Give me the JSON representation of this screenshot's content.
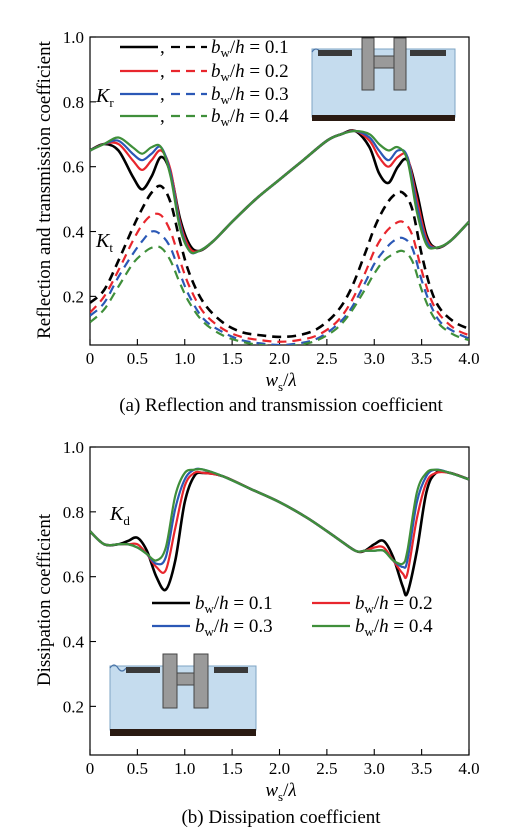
{
  "figure": {
    "captions": [
      "(a) Reflection and transmission coefficient",
      "(b) Dissipation coefficient"
    ]
  },
  "colors": {
    "bw_0.1": "#000000",
    "bw_0.2": "#e8262d",
    "bw_0.3": "#2b58b6",
    "bw_0.4": "#3f8f3a",
    "water": "#c5dcee",
    "structure": "#9a9a9a",
    "seabed": "#2a1a12"
  },
  "chart_data": [
    {
      "type": "line",
      "caption": "(a) Reflection and transmission coefficient",
      "xlabel": "w_s/λ",
      "ylabel": "Reflection and transmission coefficient",
      "xlim": [
        0,
        4
      ],
      "ylim": [
        0.05,
        1.0
      ],
      "xticks": [
        "0",
        "0.5",
        "1.0",
        "1.5",
        "2.0",
        "2.5",
        "3.0",
        "3.5",
        "4.0"
      ],
      "yticks": [
        "0.2",
        "0.4",
        "0.6",
        "0.8",
        "1.0"
      ],
      "annotations": [
        "K_r",
        "K_t"
      ],
      "legend_location": "top-left",
      "legend": [
        "b_w/h = 0.1",
        "b_w/h = 0.2",
        "b_w/h = 0.3",
        "b_w/h = 0.4"
      ],
      "series": [
        {
          "name": "K_r, b_w/h = 0.1",
          "style": "solid",
          "color": "#000000",
          "x": [
            0,
            0.15,
            0.3,
            0.45,
            0.55,
            0.65,
            0.75,
            0.85,
            0.95,
            1.05,
            1.15,
            1.3,
            1.5,
            1.75,
            2.0,
            2.25,
            2.5,
            2.65,
            2.8,
            2.95,
            3.05,
            3.15,
            3.25,
            3.35,
            3.45,
            3.55,
            3.65,
            3.8,
            4.0
          ],
          "y": [
            0.65,
            0.67,
            0.65,
            0.57,
            0.53,
            0.57,
            0.63,
            0.58,
            0.44,
            0.36,
            0.34,
            0.37,
            0.43,
            0.5,
            0.56,
            0.62,
            0.68,
            0.7,
            0.71,
            0.66,
            0.58,
            0.55,
            0.6,
            0.62,
            0.52,
            0.39,
            0.35,
            0.37,
            0.43
          ]
        },
        {
          "name": "K_r, b_w/h = 0.2",
          "style": "solid",
          "color": "#e8262d",
          "x": [
            0,
            0.15,
            0.3,
            0.45,
            0.55,
            0.65,
            0.75,
            0.85,
            0.95,
            1.05,
            1.15,
            1.3,
            1.5,
            1.75,
            2.0,
            2.25,
            2.5,
            2.65,
            2.8,
            2.95,
            3.05,
            3.15,
            3.25,
            3.35,
            3.45,
            3.55,
            3.65,
            3.8,
            4.0
          ],
          "y": [
            0.65,
            0.67,
            0.67,
            0.62,
            0.59,
            0.62,
            0.65,
            0.59,
            0.43,
            0.35,
            0.34,
            0.37,
            0.43,
            0.5,
            0.56,
            0.62,
            0.68,
            0.7,
            0.71,
            0.68,
            0.63,
            0.6,
            0.63,
            0.63,
            0.5,
            0.38,
            0.35,
            0.37,
            0.43
          ]
        },
        {
          "name": "K_r, b_w/h = 0.3",
          "style": "solid",
          "color": "#2b58b6",
          "x": [
            0,
            0.15,
            0.3,
            0.45,
            0.55,
            0.65,
            0.75,
            0.85,
            0.95,
            1.05,
            1.15,
            1.3,
            1.5,
            1.75,
            2.0,
            2.25,
            2.5,
            2.65,
            2.8,
            2.95,
            3.05,
            3.15,
            3.25,
            3.35,
            3.45,
            3.55,
            3.65,
            3.8,
            4.0
          ],
          "y": [
            0.65,
            0.67,
            0.68,
            0.64,
            0.62,
            0.64,
            0.66,
            0.58,
            0.42,
            0.34,
            0.34,
            0.37,
            0.43,
            0.5,
            0.56,
            0.62,
            0.68,
            0.7,
            0.71,
            0.69,
            0.65,
            0.62,
            0.65,
            0.63,
            0.48,
            0.37,
            0.35,
            0.37,
            0.43
          ]
        },
        {
          "name": "K_r, b_w/h = 0.4",
          "style": "solid",
          "color": "#3f8f3a",
          "x": [
            0,
            0.15,
            0.3,
            0.45,
            0.55,
            0.65,
            0.75,
            0.85,
            0.95,
            1.05,
            1.15,
            1.3,
            1.5,
            1.75,
            2.0,
            2.25,
            2.5,
            2.65,
            2.8,
            2.95,
            3.05,
            3.15,
            3.25,
            3.35,
            3.45,
            3.55,
            3.65,
            3.8,
            4.0
          ],
          "y": [
            0.65,
            0.67,
            0.69,
            0.66,
            0.64,
            0.66,
            0.66,
            0.57,
            0.41,
            0.34,
            0.34,
            0.37,
            0.43,
            0.5,
            0.56,
            0.62,
            0.68,
            0.7,
            0.71,
            0.7,
            0.67,
            0.65,
            0.66,
            0.62,
            0.46,
            0.36,
            0.35,
            0.37,
            0.43
          ]
        },
        {
          "name": "K_t, b_w/h = 0.1",
          "style": "dashed",
          "color": "#000000",
          "x": [
            0,
            0.15,
            0.3,
            0.45,
            0.55,
            0.65,
            0.75,
            0.85,
            0.95,
            1.05,
            1.2,
            1.4,
            1.6,
            1.8,
            2.0,
            2.2,
            2.4,
            2.6,
            2.75,
            2.9,
            3.0,
            3.1,
            3.2,
            3.3,
            3.4,
            3.5,
            3.6,
            3.7,
            3.85,
            4.0
          ],
          "y": [
            0.18,
            0.22,
            0.31,
            0.41,
            0.47,
            0.52,
            0.54,
            0.49,
            0.37,
            0.27,
            0.18,
            0.12,
            0.09,
            0.08,
            0.075,
            0.08,
            0.1,
            0.15,
            0.22,
            0.33,
            0.41,
            0.47,
            0.51,
            0.52,
            0.47,
            0.33,
            0.22,
            0.16,
            0.12,
            0.1
          ]
        },
        {
          "name": "K_t, b_w/h = 0.2",
          "style": "dashed",
          "color": "#e8262d",
          "x": [
            0,
            0.15,
            0.3,
            0.45,
            0.55,
            0.65,
            0.75,
            0.85,
            0.95,
            1.05,
            1.2,
            1.4,
            1.6,
            1.8,
            2.0,
            2.2,
            2.4,
            2.6,
            2.75,
            2.9,
            3.0,
            3.1,
            3.2,
            3.3,
            3.4,
            3.5,
            3.6,
            3.7,
            3.85,
            4.0
          ],
          "y": [
            0.15,
            0.2,
            0.28,
            0.37,
            0.42,
            0.45,
            0.45,
            0.4,
            0.31,
            0.23,
            0.15,
            0.1,
            0.075,
            0.065,
            0.06,
            0.065,
            0.08,
            0.12,
            0.18,
            0.27,
            0.34,
            0.39,
            0.42,
            0.43,
            0.39,
            0.28,
            0.19,
            0.14,
            0.1,
            0.08
          ]
        },
        {
          "name": "K_t, b_w/h = 0.3",
          "style": "dashed",
          "color": "#2b58b6",
          "x": [
            0,
            0.15,
            0.3,
            0.45,
            0.55,
            0.65,
            0.75,
            0.85,
            0.95,
            1.05,
            1.2,
            1.4,
            1.6,
            1.8,
            2.0,
            2.2,
            2.4,
            2.6,
            2.75,
            2.9,
            3.0,
            3.1,
            3.2,
            3.3,
            3.4,
            3.5,
            3.6,
            3.7,
            3.85,
            4.0
          ],
          "y": [
            0.14,
            0.18,
            0.26,
            0.33,
            0.37,
            0.4,
            0.39,
            0.35,
            0.27,
            0.2,
            0.13,
            0.09,
            0.065,
            0.055,
            0.05,
            0.055,
            0.07,
            0.11,
            0.16,
            0.24,
            0.3,
            0.34,
            0.37,
            0.38,
            0.35,
            0.25,
            0.17,
            0.12,
            0.09,
            0.07
          ]
        },
        {
          "name": "K_t, b_w/h = 0.4",
          "style": "dashed",
          "color": "#3f8f3a",
          "x": [
            0,
            0.15,
            0.3,
            0.45,
            0.55,
            0.65,
            0.75,
            0.85,
            0.95,
            1.05,
            1.2,
            1.4,
            1.6,
            1.8,
            2.0,
            2.2,
            2.4,
            2.6,
            2.75,
            2.9,
            3.0,
            3.1,
            3.2,
            3.3,
            3.4,
            3.5,
            3.6,
            3.7,
            3.85,
            4.0
          ],
          "y": [
            0.12,
            0.16,
            0.23,
            0.3,
            0.33,
            0.35,
            0.35,
            0.31,
            0.24,
            0.18,
            0.12,
            0.08,
            0.06,
            0.05,
            0.045,
            0.05,
            0.065,
            0.1,
            0.15,
            0.22,
            0.27,
            0.31,
            0.33,
            0.34,
            0.31,
            0.22,
            0.15,
            0.11,
            0.08,
            0.065
          ]
        }
      ]
    },
    {
      "type": "line",
      "caption": "(b) Dissipation coefficient",
      "xlabel": "w_s/λ",
      "ylabel": "Dissipation coefficient",
      "xlim": [
        0,
        4
      ],
      "ylim": [
        0.05,
        1.0
      ],
      "xticks": [
        "0",
        "0.5",
        "1.0",
        "1.5",
        "2.0",
        "2.5",
        "3.0",
        "3.5",
        "4.0"
      ],
      "yticks": [
        "0.2",
        "0.4",
        "0.6",
        "0.8",
        "1.0"
      ],
      "annotations": [
        "K_d"
      ],
      "legend_location": "center-right",
      "legend": [
        "b_w/h = 0.1",
        "b_w/h = 0.2",
        "b_w/h = 0.3",
        "b_w/h = 0.4"
      ],
      "series": [
        {
          "name": "b_w/h = 0.1",
          "color": "#000000",
          "x": [
            0,
            0.15,
            0.3,
            0.4,
            0.5,
            0.6,
            0.7,
            0.8,
            0.9,
            1.0,
            1.1,
            1.2,
            1.4,
            1.7,
            2.0,
            2.3,
            2.6,
            2.8,
            2.9,
            3.0,
            3.1,
            3.2,
            3.3,
            3.35,
            3.45,
            3.55,
            3.65,
            3.8,
            4.0
          ],
          "y": [
            0.74,
            0.7,
            0.7,
            0.71,
            0.72,
            0.68,
            0.6,
            0.56,
            0.65,
            0.83,
            0.91,
            0.92,
            0.91,
            0.87,
            0.83,
            0.78,
            0.72,
            0.68,
            0.68,
            0.7,
            0.71,
            0.66,
            0.57,
            0.55,
            0.68,
            0.86,
            0.92,
            0.92,
            0.9
          ]
        },
        {
          "name": "b_w/h = 0.2",
          "color": "#e8262d",
          "x": [
            0,
            0.15,
            0.3,
            0.4,
            0.5,
            0.6,
            0.7,
            0.8,
            0.9,
            1.0,
            1.1,
            1.2,
            1.4,
            1.7,
            2.0,
            2.3,
            2.6,
            2.8,
            2.9,
            3.0,
            3.1,
            3.2,
            3.3,
            3.35,
            3.45,
            3.55,
            3.65,
            3.8,
            4.0
          ],
          "y": [
            0.74,
            0.7,
            0.7,
            0.7,
            0.7,
            0.67,
            0.63,
            0.62,
            0.75,
            0.88,
            0.92,
            0.92,
            0.91,
            0.87,
            0.83,
            0.78,
            0.72,
            0.68,
            0.68,
            0.69,
            0.69,
            0.65,
            0.61,
            0.61,
            0.78,
            0.89,
            0.92,
            0.92,
            0.9
          ]
        },
        {
          "name": "b_w/h = 0.3",
          "color": "#2b58b6",
          "x": [
            0,
            0.15,
            0.3,
            0.4,
            0.5,
            0.6,
            0.7,
            0.8,
            0.9,
            1.0,
            1.1,
            1.2,
            1.4,
            1.7,
            2.0,
            2.3,
            2.6,
            2.8,
            2.9,
            3.0,
            3.1,
            3.2,
            3.3,
            3.35,
            3.45,
            3.55,
            3.65,
            3.8,
            4.0
          ],
          "y": [
            0.74,
            0.7,
            0.7,
            0.7,
            0.69,
            0.67,
            0.64,
            0.66,
            0.81,
            0.9,
            0.93,
            0.93,
            0.91,
            0.87,
            0.83,
            0.78,
            0.72,
            0.68,
            0.68,
            0.68,
            0.68,
            0.65,
            0.63,
            0.65,
            0.83,
            0.91,
            0.93,
            0.92,
            0.9
          ]
        },
        {
          "name": "b_w/h = 0.4",
          "color": "#3f8f3a",
          "x": [
            0,
            0.15,
            0.3,
            0.4,
            0.5,
            0.6,
            0.7,
            0.8,
            0.9,
            1.0,
            1.1,
            1.2,
            1.4,
            1.7,
            2.0,
            2.3,
            2.6,
            2.8,
            2.9,
            3.0,
            3.1,
            3.2,
            3.3,
            3.35,
            3.45,
            3.55,
            3.65,
            3.8,
            4.0
          ],
          "y": [
            0.74,
            0.7,
            0.7,
            0.7,
            0.69,
            0.67,
            0.65,
            0.69,
            0.85,
            0.92,
            0.93,
            0.93,
            0.91,
            0.87,
            0.83,
            0.78,
            0.72,
            0.68,
            0.68,
            0.68,
            0.68,
            0.65,
            0.64,
            0.68,
            0.86,
            0.92,
            0.93,
            0.92,
            0.9
          ]
        }
      ]
    }
  ]
}
